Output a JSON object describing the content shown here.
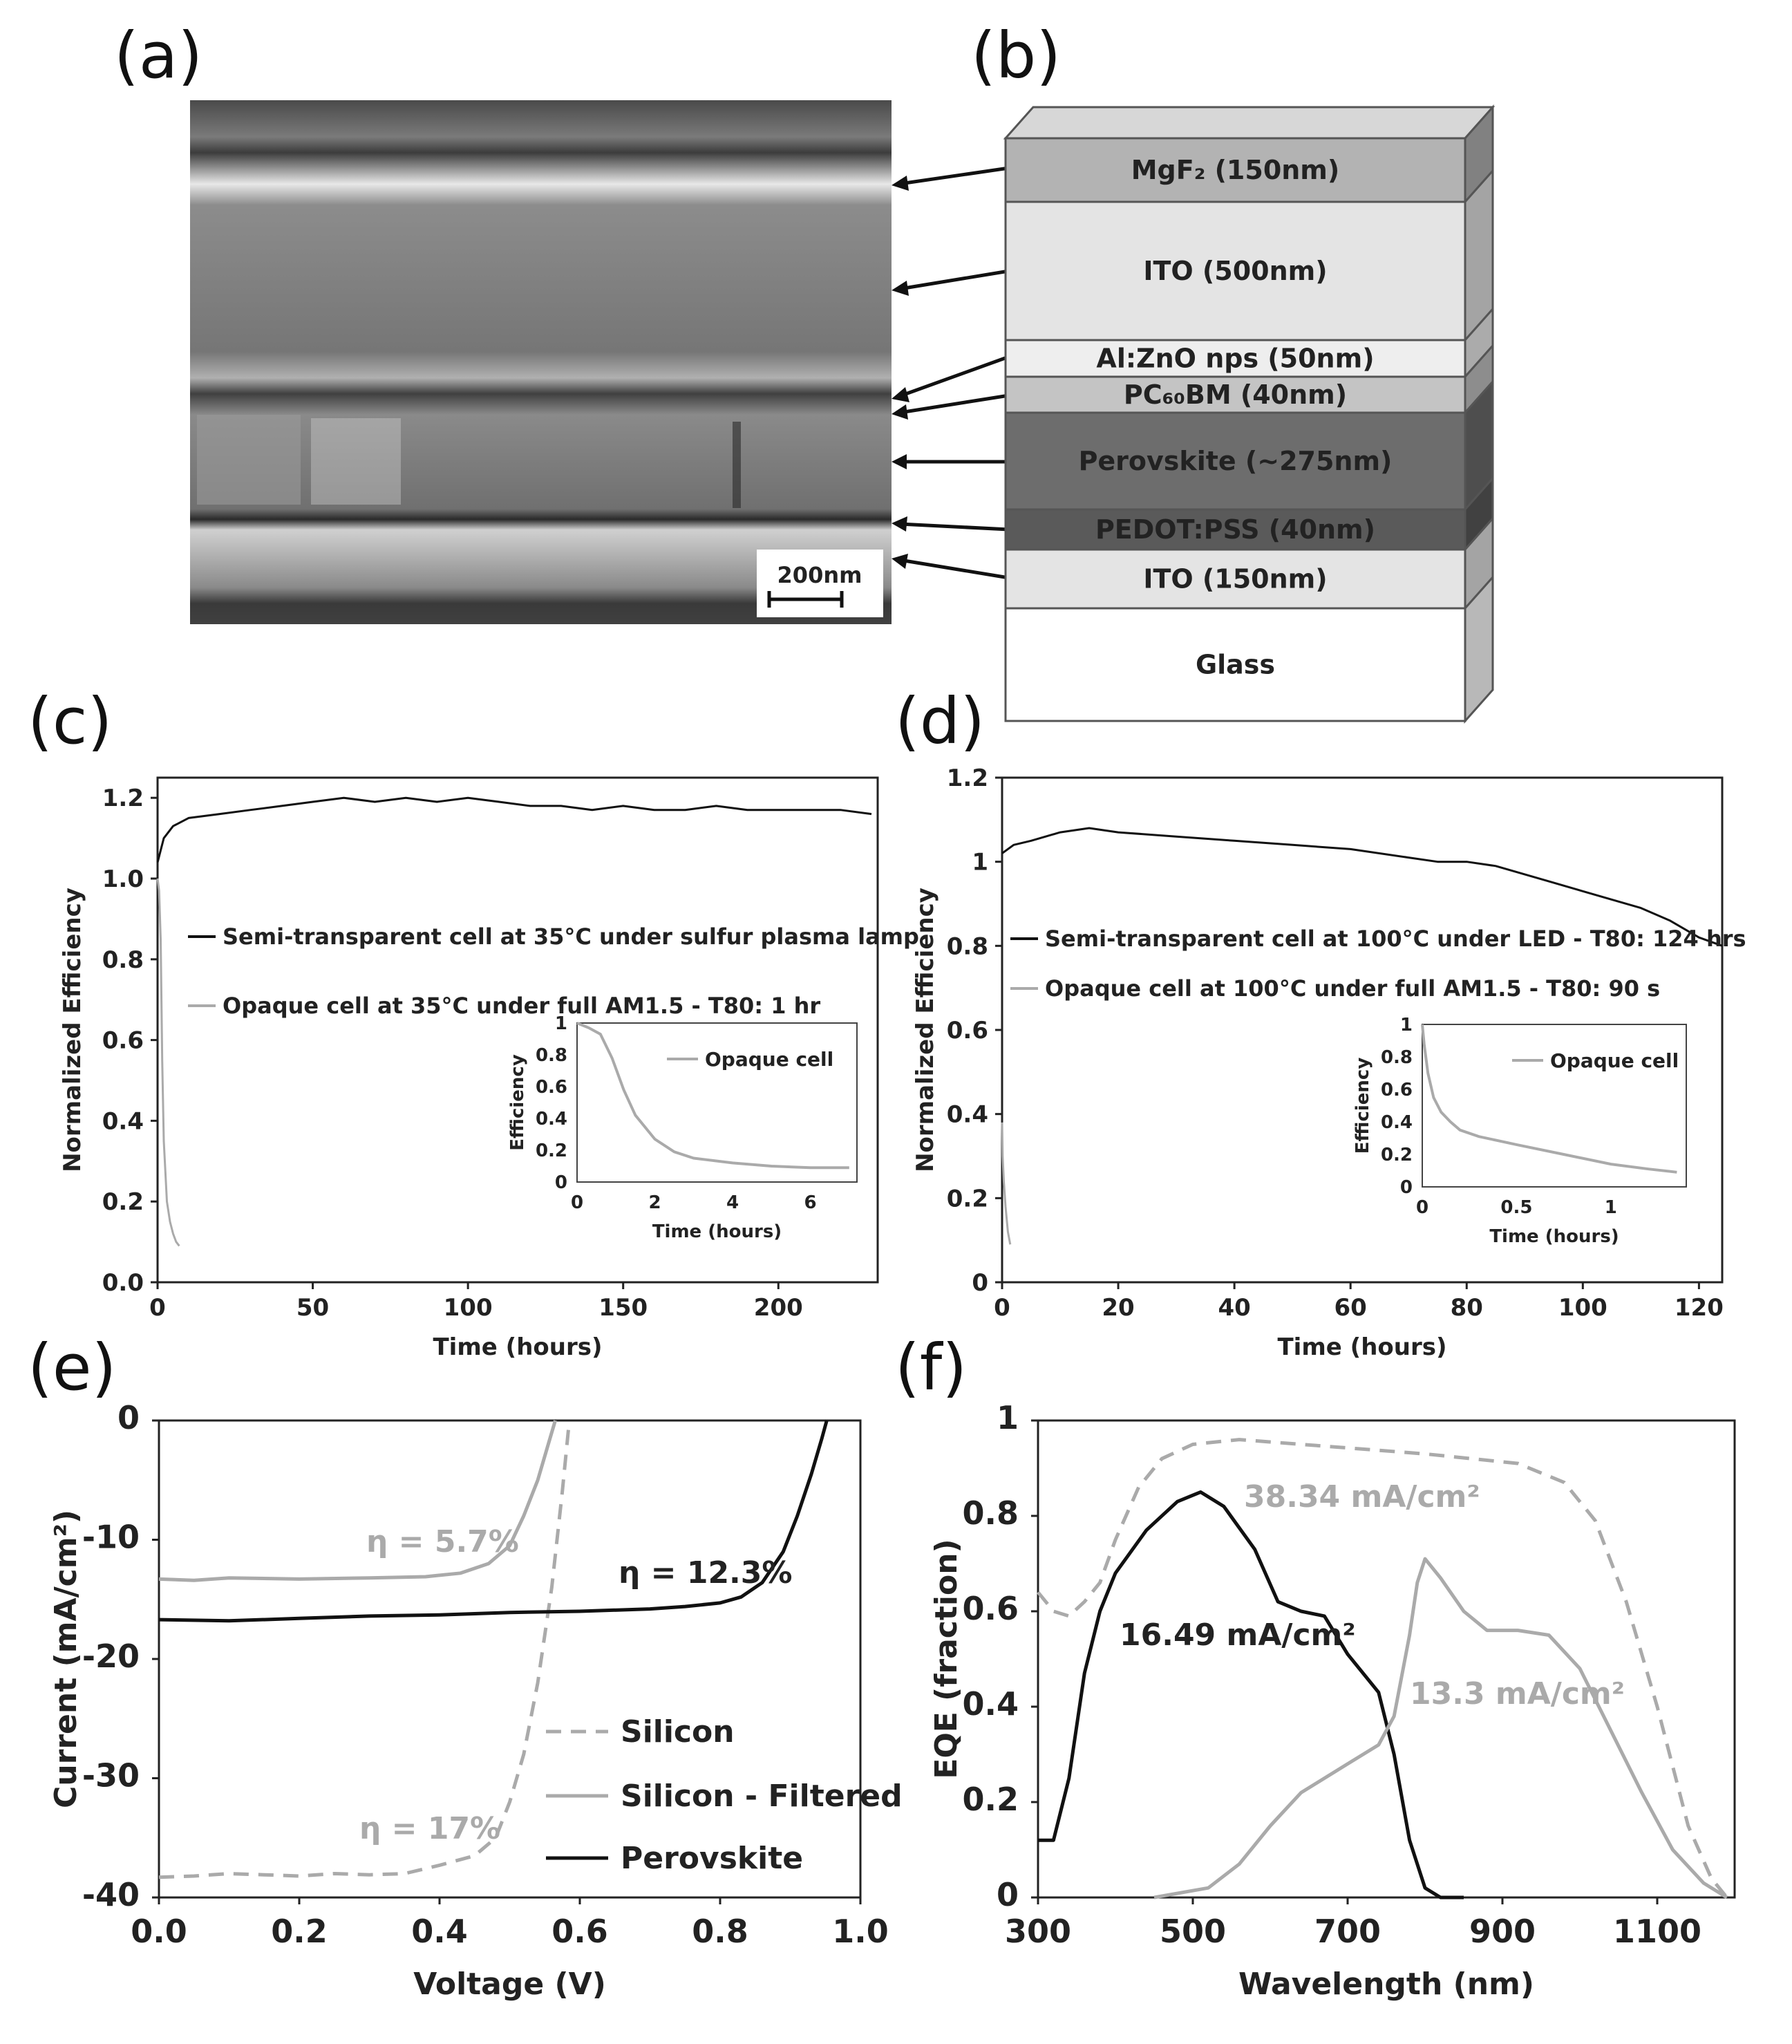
{
  "panel_labels": [
    "(a)",
    "(b)",
    "(c)",
    "(d)",
    "(e)",
    "(f)"
  ],
  "panel_a": {
    "scale_bar": "200nm"
  },
  "panel_b": {
    "layers": [
      {
        "label": "MgF₂ (150nm)",
        "color": "#b3b3b3"
      },
      {
        "label": "ITO (500nm)",
        "color": "#e4e4e4"
      },
      {
        "label": "Al:ZnO nps (50nm)",
        "color": "#eeeeee"
      },
      {
        "label": "PC₆₀BM (40nm)",
        "color": "#c4c4c4"
      },
      {
        "label": "Perovskite (~275nm)",
        "color": "#6d6d6d"
      },
      {
        "label": "PEDOT:PSS (40nm)",
        "color": "#5a5a5a"
      },
      {
        "label": "ITO (150nm)",
        "color": "#e4e4e4"
      },
      {
        "label": "Glass",
        "color": "#ffffff"
      }
    ]
  },
  "chart_data": [
    {
      "id": "c",
      "type": "line",
      "xlabel": "Time (hours)",
      "ylabel": "Normalized Efficiency",
      "xlim": [
        0,
        232
      ],
      "ylim": [
        0,
        1.25
      ],
      "xticks": [
        "0",
        "50",
        "100",
        "150",
        "200"
      ],
      "yticks": [
        "0.0",
        "0.2",
        "0.4",
        "0.6",
        "0.8",
        "1.0",
        "1.2"
      ],
      "series": [
        {
          "name": "Semi-transparent cell at 35°C under sulfur plasma lamp",
          "color": "#111111",
          "x": [
            0,
            2,
            5,
            10,
            20,
            30,
            40,
            50,
            60,
            70,
            80,
            90,
            100,
            110,
            120,
            130,
            140,
            150,
            160,
            170,
            180,
            190,
            200,
            210,
            220,
            230
          ],
          "y": [
            1.04,
            1.1,
            1.13,
            1.15,
            1.16,
            1.17,
            1.18,
            1.19,
            1.2,
            1.19,
            1.2,
            1.19,
            1.2,
            1.19,
            1.18,
            1.18,
            1.17,
            1.18,
            1.17,
            1.17,
            1.18,
            1.17,
            1.17,
            1.17,
            1.17,
            1.16
          ]
        },
        {
          "name": "Opaque cell at 35°C under full AM1.5 - T80: 1 hr",
          "color": "#aaaaaa",
          "x": [
            0,
            0.5,
            1,
            1.5,
            2,
            3,
            4,
            5,
            6,
            7
          ],
          "y": [
            1.0,
            0.97,
            0.85,
            0.55,
            0.35,
            0.2,
            0.15,
            0.12,
            0.1,
            0.09
          ]
        }
      ],
      "inset": {
        "xlabel": "Time (hours)",
        "ylabel": "Efficiency",
        "legend": "Opaque cell",
        "xlim": [
          0,
          7.2
        ],
        "ylim": [
          0,
          1
        ],
        "xticks": [
          "0",
          "2",
          "4",
          "6"
        ],
        "yticks": [
          "0",
          "0.2",
          "0.4",
          "0.6",
          "0.8",
          "1"
        ],
        "x": [
          0,
          0.3,
          0.6,
          0.9,
          1.2,
          1.5,
          2.0,
          2.5,
          3.0,
          4.0,
          5.0,
          6.0,
          7.0
        ],
        "y": [
          1.0,
          0.97,
          0.93,
          0.78,
          0.58,
          0.42,
          0.27,
          0.19,
          0.15,
          0.12,
          0.1,
          0.09,
          0.09
        ]
      }
    },
    {
      "id": "d",
      "type": "line",
      "xlabel": "Time (hours)",
      "ylabel": "Normalized Efficiency",
      "xlim": [
        0,
        124
      ],
      "ylim": [
        0,
        1.2
      ],
      "xticks": [
        "0",
        "20",
        "40",
        "60",
        "80",
        "100",
        "120"
      ],
      "yticks": [
        "0",
        "0.2",
        "0.4",
        "0.6",
        "0.8",
        "1",
        "1.2"
      ],
      "series": [
        {
          "name": "Semi-transparent cell at 100°C under LED - T80: 124 hrs",
          "color": "#111111",
          "x": [
            0,
            2,
            5,
            10,
            15,
            20,
            30,
            40,
            50,
            60,
            70,
            75,
            80,
            85,
            90,
            95,
            100,
            105,
            110,
            115,
            120,
            124
          ],
          "y": [
            1.02,
            1.04,
            1.05,
            1.07,
            1.08,
            1.07,
            1.06,
            1.05,
            1.04,
            1.03,
            1.01,
            1.0,
            1.0,
            0.99,
            0.97,
            0.95,
            0.93,
            0.91,
            0.89,
            0.86,
            0.82,
            0.8
          ]
        },
        {
          "name": "Opaque cell at 100°C under full AM1.5 - T80: 90 s",
          "color": "#aaaaaa",
          "x": [
            0,
            0.1,
            0.3,
            0.6,
            1.0,
            1.4
          ],
          "y": [
            0.38,
            0.3,
            0.24,
            0.18,
            0.12,
            0.09
          ]
        }
      ],
      "inset": {
        "xlabel": "Time (hours)",
        "ylabel": "Efficiency",
        "legend": "Opaque cell",
        "xlim": [
          0,
          1.4
        ],
        "ylim": [
          0,
          1
        ],
        "xticks": [
          "0",
          "0.5",
          "1"
        ],
        "yticks": [
          "0",
          "0.2",
          "0.4",
          "0.6",
          "0.8",
          "1"
        ],
        "x": [
          0,
          0.01,
          0.03,
          0.06,
          0.1,
          0.15,
          0.2,
          0.3,
          0.5,
          0.75,
          1.0,
          1.2,
          1.35
        ],
        "y": [
          1.0,
          0.88,
          0.7,
          0.55,
          0.46,
          0.4,
          0.35,
          0.31,
          0.26,
          0.2,
          0.14,
          0.11,
          0.09
        ]
      }
    },
    {
      "id": "e",
      "type": "line",
      "xlabel": "Voltage (V)",
      "ylabel": "Current (mA/cm²)",
      "xlim": [
        0,
        1.0
      ],
      "ylim": [
        -40,
        0
      ],
      "xticks": [
        "0.0",
        "0.2",
        "0.4",
        "0.6",
        "0.8",
        "1.0"
      ],
      "yticks": [
        "-40",
        "-30",
        "-20",
        "-10",
        "0"
      ],
      "series": [
        {
          "name": "Silicon",
          "color": "#aaaaaa",
          "dash": true,
          "x": [
            0,
            0.05,
            0.1,
            0.15,
            0.2,
            0.25,
            0.3,
            0.35,
            0.4,
            0.45,
            0.48,
            0.5,
            0.52,
            0.54,
            0.56,
            0.575,
            0.585
          ],
          "y": [
            -38.3,
            -38.2,
            -38.0,
            -38.1,
            -38.2,
            -38.0,
            -38.1,
            -38.0,
            -37.3,
            -36.5,
            -35.0,
            -32.0,
            -28.0,
            -22.0,
            -14.0,
            -6.0,
            0
          ]
        },
        {
          "name": "Silicon - Filtered",
          "color": "#aaaaaa",
          "x": [
            0,
            0.05,
            0.1,
            0.2,
            0.3,
            0.38,
            0.43,
            0.47,
            0.5,
            0.52,
            0.54,
            0.555,
            0.565
          ],
          "y": [
            -13.3,
            -13.4,
            -13.2,
            -13.3,
            -13.2,
            -13.1,
            -12.8,
            -12.0,
            -10.5,
            -8.0,
            -5.0,
            -2.0,
            0
          ]
        },
        {
          "name": "Perovskite",
          "color": "#111111",
          "x": [
            0,
            0.1,
            0.2,
            0.3,
            0.4,
            0.5,
            0.6,
            0.7,
            0.75,
            0.8,
            0.83,
            0.86,
            0.89,
            0.91,
            0.93,
            0.945,
            0.952
          ],
          "y": [
            -16.7,
            -16.8,
            -16.6,
            -16.4,
            -16.3,
            -16.1,
            -16.0,
            -15.8,
            -15.6,
            -15.3,
            -14.8,
            -13.6,
            -11.0,
            -8.0,
            -4.5,
            -1.5,
            0
          ]
        }
      ],
      "annotations": [
        "η = 5.7%",
        "η = 12.3%",
        "η = 17%"
      ]
    },
    {
      "id": "f",
      "type": "line",
      "xlabel": "Wavelength (nm)",
      "ylabel": "EQE (fraction)",
      "xlim": [
        300,
        1200
      ],
      "ylim": [
        0,
        1
      ],
      "xticks": [
        "300",
        "500",
        "700",
        "900",
        "1100"
      ],
      "yticks": [
        "0",
        "0.2",
        "0.4",
        "0.6",
        "0.8",
        "1"
      ],
      "series": [
        {
          "name": "38.34 mA/cm²",
          "color": "#aaaaaa",
          "dash": true,
          "x": [
            300,
            320,
            340,
            360,
            380,
            400,
            430,
            460,
            500,
            560,
            640,
            720,
            800,
            860,
            920,
            980,
            1020,
            1060,
            1100,
            1140,
            1170,
            1190
          ],
          "y": [
            0.64,
            0.6,
            0.59,
            0.62,
            0.66,
            0.75,
            0.86,
            0.92,
            0.95,
            0.96,
            0.95,
            0.94,
            0.93,
            0.92,
            0.91,
            0.87,
            0.79,
            0.62,
            0.4,
            0.15,
            0.04,
            0.0
          ]
        },
        {
          "name": "16.49 mA/cm²",
          "color": "#111111",
          "x": [
            300,
            320,
            340,
            360,
            380,
            400,
            440,
            480,
            510,
            540,
            580,
            610,
            640,
            670,
            700,
            740,
            760,
            780,
            800,
            820,
            850
          ],
          "y": [
            0.12,
            0.12,
            0.25,
            0.47,
            0.6,
            0.68,
            0.77,
            0.83,
            0.85,
            0.82,
            0.73,
            0.62,
            0.6,
            0.59,
            0.51,
            0.43,
            0.3,
            0.12,
            0.02,
            0.0,
            0.0
          ]
        },
        {
          "name": "13.3 mA/cm²",
          "color": "#aaaaaa",
          "x": [
            450,
            520,
            560,
            600,
            640,
            700,
            740,
            760,
            780,
            790,
            800,
            820,
            850,
            880,
            920,
            960,
            1000,
            1040,
            1080,
            1120,
            1160,
            1190
          ],
          "y": [
            0.0,
            0.02,
            0.07,
            0.15,
            0.22,
            0.28,
            0.32,
            0.38,
            0.55,
            0.66,
            0.71,
            0.67,
            0.6,
            0.56,
            0.56,
            0.55,
            0.48,
            0.35,
            0.22,
            0.1,
            0.03,
            0.0
          ]
        }
      ]
    }
  ]
}
